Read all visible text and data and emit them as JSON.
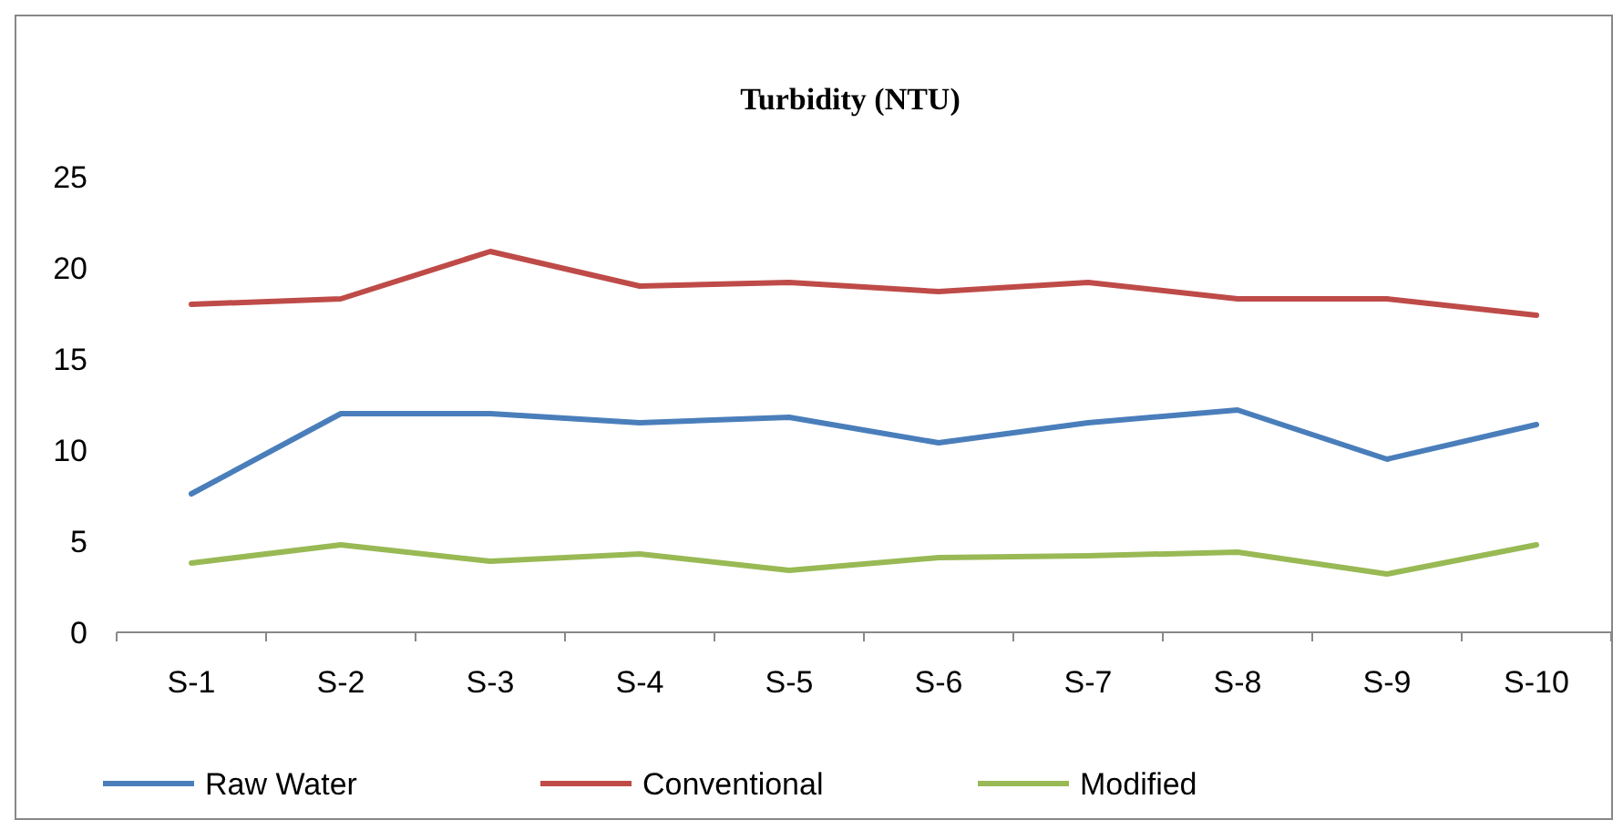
{
  "chart_data": {
    "type": "line",
    "title": "Turbidity  (NTU)",
    "categories": [
      "S-1",
      "S-2",
      "S-3",
      "S-4",
      "S-5",
      "S-6",
      "S-7",
      "S-8",
      "S-9",
      "S-10"
    ],
    "series": [
      {
        "name": "Raw Water",
        "color": "#4a7ebb",
        "values": [
          7.6,
          12.0,
          12.0,
          11.5,
          11.8,
          10.4,
          11.5,
          12.2,
          9.5,
          11.4
        ]
      },
      {
        "name": "Conventional",
        "color": "#be4b48",
        "values": [
          18.0,
          18.3,
          20.9,
          19.0,
          19.2,
          18.7,
          19.2,
          18.3,
          18.3,
          17.4
        ]
      },
      {
        "name": "Modified",
        "color": "#98b954",
        "values": [
          3.8,
          4.8,
          3.9,
          4.3,
          3.4,
          4.1,
          4.2,
          4.4,
          3.2,
          4.8
        ]
      }
    ],
    "ylim": [
      0,
      25
    ],
    "yticks": [
      0,
      5,
      10,
      15,
      20,
      25
    ],
    "grid": false,
    "legend": "bottom",
    "marker": "none",
    "line_style": "solid"
  }
}
